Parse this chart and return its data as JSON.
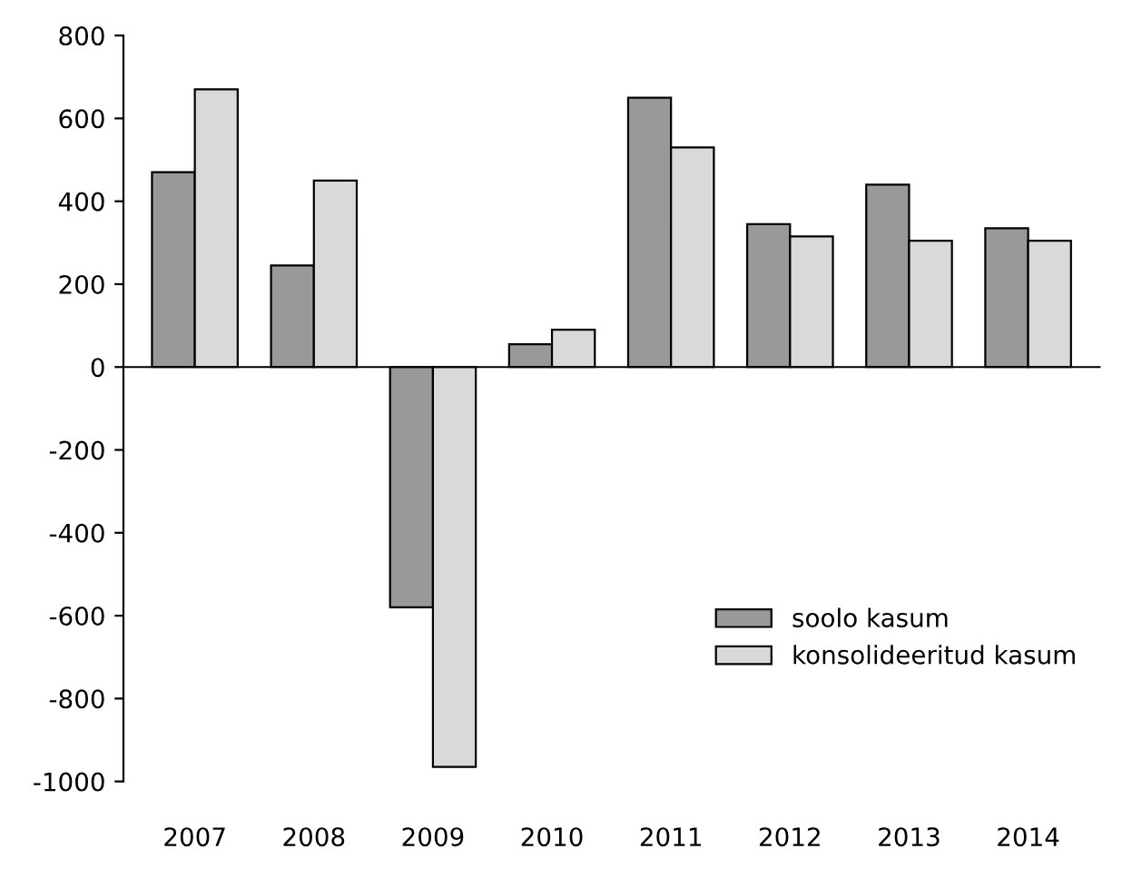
{
  "chart_data": {
    "type": "bar",
    "categories": [
      "2007",
      "2008",
      "2009",
      "2010",
      "2011",
      "2012",
      "2013",
      "2014"
    ],
    "series": [
      {
        "name": "soolo kasum",
        "color": "#999999",
        "values": [
          470,
          245,
          -580,
          55,
          650,
          345,
          440,
          335
        ]
      },
      {
        "name": "konsolideeritud kasum",
        "color": "#d9d9d9",
        "values": [
          670,
          450,
          -965,
          90,
          530,
          315,
          305,
          305
        ]
      }
    ],
    "ylim": [
      -1000,
      800
    ],
    "yticks": [
      {
        "value": -1000,
        "label": "-1000"
      },
      {
        "value": -800,
        "label": "-800"
      },
      {
        "value": -600,
        "label": "-600"
      },
      {
        "value": -400,
        "label": "-400"
      },
      {
        "value": -200,
        "label": "-200"
      },
      0,
      200,
      400,
      600,
      800
    ],
    "legend": "bottom right"
  }
}
